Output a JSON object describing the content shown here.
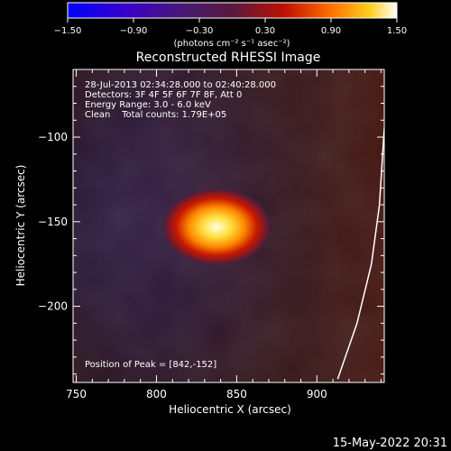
{
  "chart_data": {
    "type": "heatmap",
    "title": "Reconstructed RHESSI Image",
    "xlabel": "Heliocentric X (arcsec)",
    "ylabel": "Heliocentric Y (arcsec)",
    "xlim": [
      748,
      942
    ],
    "ylim": [
      -245,
      -60
    ],
    "x_ticks": [
      750,
      800,
      850,
      900
    ],
    "y_ticks": [
      -100,
      -150,
      -200
    ],
    "colorbar": {
      "range": [
        -1.5,
        1.5
      ],
      "ticks": [
        "-1.50",
        "-0.90",
        "-0.30",
        "0.30",
        "0.90",
        "1.50"
      ],
      "label": "(photons cm⁻² s⁻¹ asec⁻²)",
      "colormap": "blue-purple-red-yellow-white"
    },
    "annotations": [
      "28-Jul-2013 02:34:28.000 to 02:40:28.000",
      "Detectors: 3F 4F 5F 6F 7F 8F, Att 0",
      "Energy Range: 3.0 - 6.0 keV",
      "Clean    Total counts: 1.79E+05"
    ],
    "peak_label": "Position of Peak = [842,-152]",
    "peak": {
      "x": 842,
      "y": -152
    },
    "limb_curve": [
      [
        913,
        -243
      ],
      [
        925,
        -210
      ],
      [
        934,
        -175
      ],
      [
        939,
        -140
      ],
      [
        942,
        -95
      ]
    ]
  },
  "footer_timestamp": "15-May-2022 20:31"
}
